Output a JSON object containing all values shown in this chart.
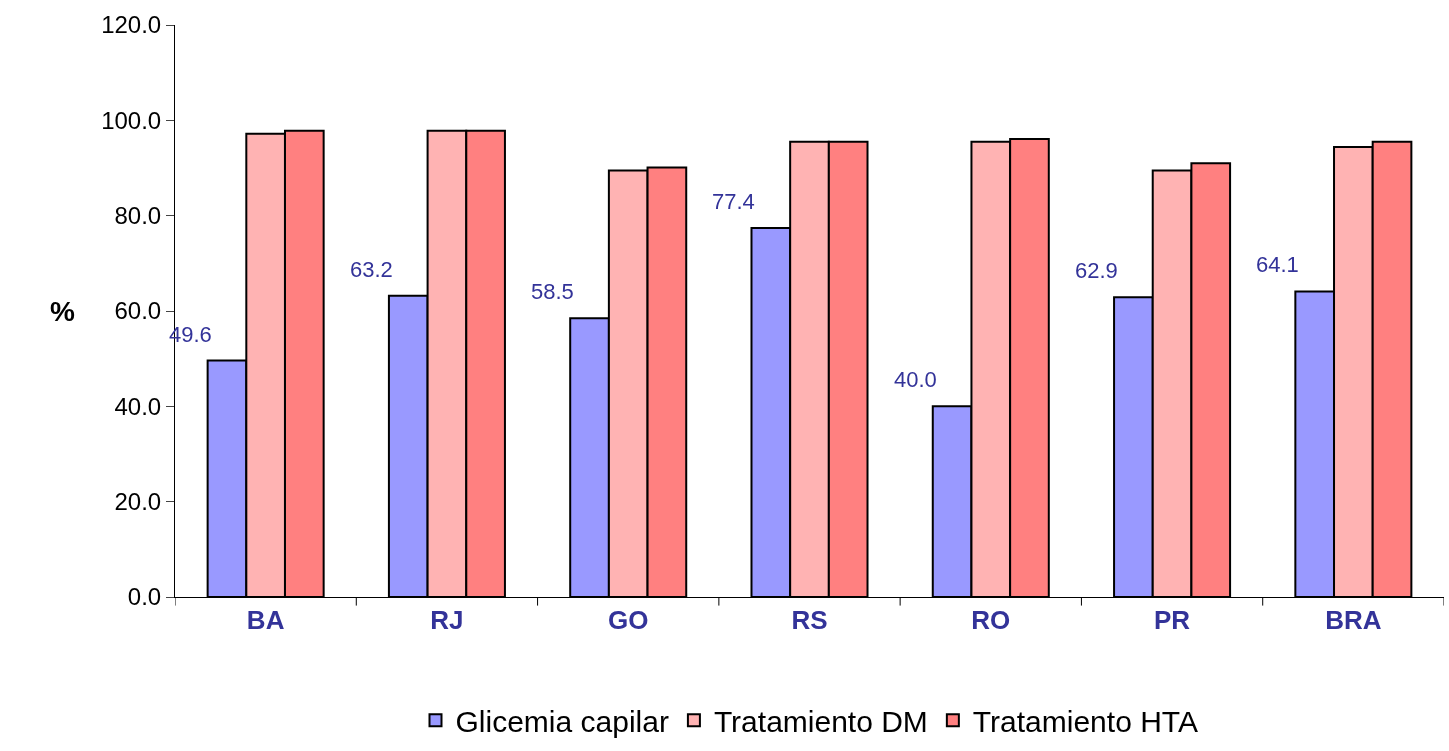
{
  "chart_data": {
    "type": "bar",
    "ylabel": "%",
    "categories": [
      "BA",
      "RJ",
      "GO",
      "RS",
      "RO",
      "PR",
      "BRA"
    ],
    "series": [
      {
        "name": "Glicemia capilar",
        "color": "#9999ff",
        "values": [
          49.6,
          63.2,
          58.5,
          77.4,
          40.0,
          62.9,
          64.1
        ],
        "value_labels": [
          "49.6",
          "63.2",
          "58.5",
          "77.4",
          "40.0",
          "62.9",
          "64.1"
        ]
      },
      {
        "name": "Tratamiento DM",
        "color": "#ffb3b3",
        "values": [
          97.2,
          97.8,
          89.5,
          95.5,
          95.5,
          89.5,
          94.4
        ]
      },
      {
        "name": "Tratamiento HTA",
        "color": "#ff8080",
        "values": [
          97.8,
          97.8,
          90.1,
          95.5,
          96.1,
          91.0,
          95.5
        ]
      }
    ],
    "ylim": [
      0,
      120
    ],
    "yticks": [
      {
        "value": 0,
        "label": "0.0"
      },
      {
        "value": 20,
        "label": "20.0"
      },
      {
        "value": 40,
        "label": "40.0"
      },
      {
        "value": 60,
        "label": "60.0"
      },
      {
        "value": 80,
        "label": "80.0"
      },
      {
        "value": 100,
        "label": "100.0"
      },
      {
        "value": 120,
        "label": "120.0"
      }
    ],
    "legend": "bottom"
  }
}
